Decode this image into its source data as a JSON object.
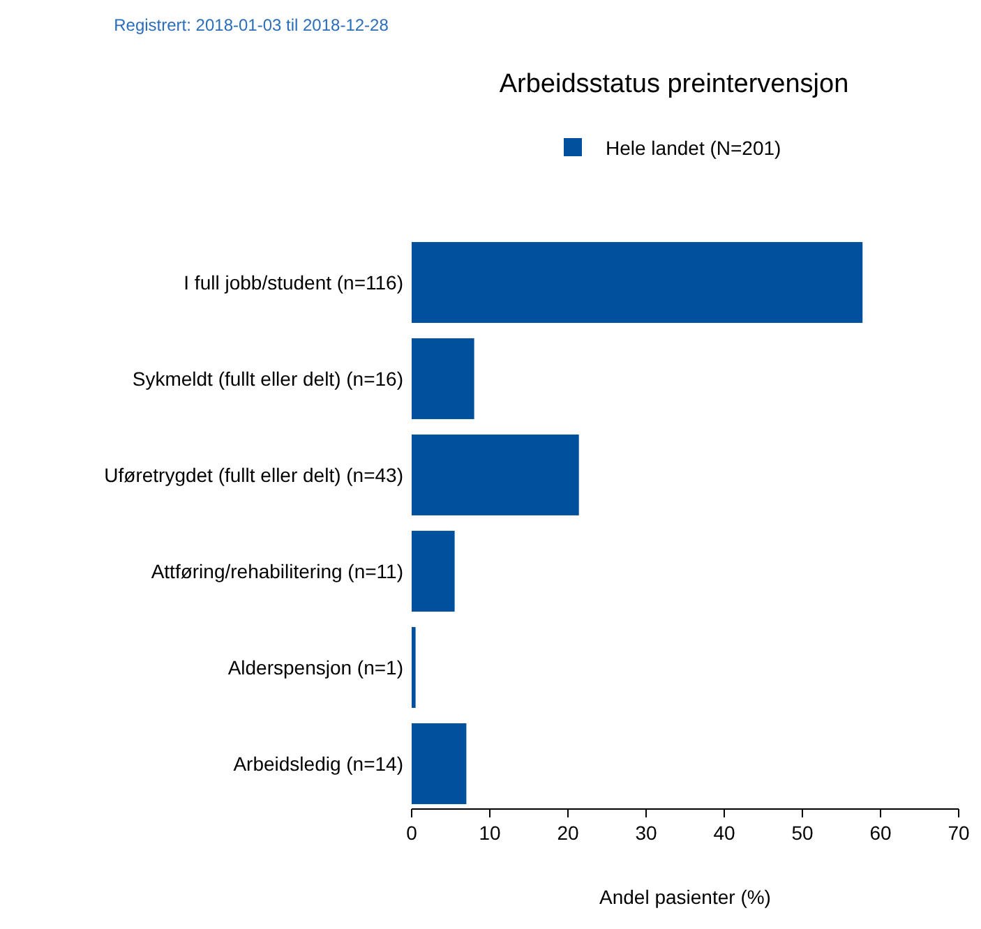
{
  "chart_data": {
    "type": "bar",
    "orientation": "horizontal",
    "title": "Arbeidsstatus preintervensjon",
    "subtitle": "Registrert: 2018-01-03 til 2018-12-28",
    "xlabel": "Andel pasienter (%)",
    "categories": [
      "I full jobb/student (n=116)",
      "Sykmeldt (fullt eller delt) (n=16)",
      "Uføretrygdet (fullt eller delt) (n=43)",
      "Attføring/rehabilitering (n=11)",
      "Alderspensjon (n=1)",
      "Arbeidsledig (n=14)"
    ],
    "series": [
      {
        "name": "Hele landet (N=201)",
        "color": "#00509e",
        "values": [
          57.7,
          8.0,
          21.4,
          5.5,
          0.5,
          7.0
        ]
      }
    ],
    "xlim": [
      0,
      70
    ],
    "xticks": [
      0,
      10,
      20,
      30,
      40,
      50,
      60,
      70
    ],
    "grid": false,
    "legend": "top"
  }
}
